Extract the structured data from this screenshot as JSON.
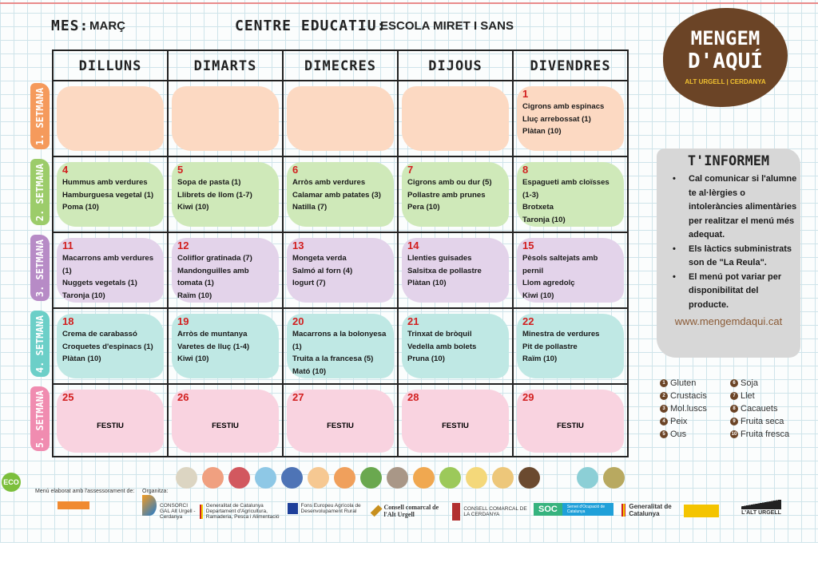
{
  "header": {
    "month_label": "MES:",
    "month": "MARÇ",
    "centre_label": "CENTRE EDUCATIU:",
    "centre": "ESCOLA MIRET I SANS"
  },
  "logo": {
    "line1": "MENGEM",
    "line2": "D'AQUÍ",
    "line3": "ALT URGELL | CERDANYA",
    "color": "#6b4426"
  },
  "days": [
    "DILLUNS",
    "DIMARTS",
    "DIMECRES",
    "DIJOUS",
    "DIVENDRES"
  ],
  "weeks": [
    {
      "label": "1. SETMANA",
      "color": "#f59a5c",
      "cell_color": "#fcd9c2",
      "cells": [
        null,
        null,
        null,
        null,
        {
          "day": "1",
          "items": [
            "Cigrons amb espinacs",
            "Lluç arrebossat (1)",
            "Plàtan (10)"
          ]
        }
      ]
    },
    {
      "label": "2. SETMANA",
      "color": "#9ccc6a",
      "cell_color": "#cfe9b9",
      "cells": [
        {
          "day": "4",
          "items": [
            "Hummus amb verdures",
            "Hamburguesa vegetal (1)",
            "Poma (10)"
          ]
        },
        {
          "day": "5",
          "items": [
            "Sopa de pasta (1)",
            "Llibrets de llom (1-7)",
            "Kiwi (10)"
          ]
        },
        {
          "day": "6",
          "items": [
            "Arròs amb verdures",
            "Calamar amb patates (3)",
            "Natilla (7)"
          ]
        },
        {
          "day": "7",
          "items": [
            "Cigrons amb ou dur (5)",
            "Pollastre amb prunes",
            "Pera (10)"
          ]
        },
        {
          "day": "8",
          "items": [
            "Espagueti amb cloïsses (1-3)",
            "Brotxeta",
            "Taronja  (10)"
          ]
        }
      ]
    },
    {
      "label": "3. SETMANA",
      "color": "#b78bc6",
      "cell_color": "#e3d3ea",
      "cells": [
        {
          "day": "11",
          "items": [
            "Macarrons amb verdures (1)",
            "Nuggets vegetals (1)",
            "Taronja (10)"
          ]
        },
        {
          "day": "12",
          "items": [
            "Coliflor gratinada (7)",
            "Mandonguilles amb",
            "tomata (1)",
            "Raïm (10)"
          ]
        },
        {
          "day": "13",
          "items": [
            "Mongeta verda",
            "Salmó al forn (4)",
            "Iogurt (7)"
          ]
        },
        {
          "day": "14",
          "items": [
            "Llenties guisades",
            "Salsitxa de pollastre",
            "Plàtan (10)"
          ]
        },
        {
          "day": "15",
          "items": [
            "Pèsols saltejats amb pernil",
            "Llom agredolç",
            "Kiwi (10)"
          ]
        }
      ]
    },
    {
      "label": "4. SETMANA",
      "color": "#6ccfc8",
      "cell_color": "#bfe8e4",
      "cells": [
        {
          "day": "18",
          "items": [
            "Crema de carabassó",
            "Croquetes d'espinacs (1)",
            "Plàtan (10)"
          ]
        },
        {
          "day": "19",
          "items": [
            "Arròs de muntanya",
            "Varetes de lluç (1-4)",
            "Kiwi (10)"
          ]
        },
        {
          "day": "20",
          "items": [
            "Macarrons a la bolonyesa (1)",
            "Truita a la francesa (5)",
            "Mató (10)"
          ]
        },
        {
          "day": "21",
          "items": [
            "Trinxat de bròquil",
            "Vedella amb bolets",
            "Pruna (10)"
          ]
        },
        {
          "day": "22",
          "items": [
            "Minestra de verdures",
            "Pit de pollastre",
            "Raïm (10)"
          ]
        }
      ]
    },
    {
      "label": "5. SETMANA",
      "color": "#f08cb0",
      "cell_color": "#f9d3e0",
      "cells": [
        {
          "day": "25",
          "festiu": "FESTIU"
        },
        {
          "day": "26",
          "festiu": "FESTIU"
        },
        {
          "day": "27",
          "festiu": "FESTIU"
        },
        {
          "day": "28",
          "festiu": "FESTIU"
        },
        {
          "day": "29",
          "festiu": "FESTIU"
        }
      ]
    }
  ],
  "info": {
    "title": "T'INFORMEM",
    "bullets": [
      "Cal comunicar si l'alumne te al·lèrgies o intoleràncies alimentàries per realitzar el menú més adequat.",
      "Els làctics subministrats son de \"La Reula\".",
      "El menú pot variar per disponibilitat del producte."
    ],
    "website": "www.mengemdaqui.cat"
  },
  "allergens": [
    "Gluten",
    "Soja",
    "Crustacis",
    "Llet",
    "Mol.luscs",
    "Cacauets",
    "Peix",
    "Fruita seca",
    "Ous",
    "Fruita fresca"
  ],
  "allergen_numbers": [
    "1",
    "6",
    "2",
    "7",
    "3",
    "8",
    "4",
    "9",
    "5",
    "10"
  ],
  "food_icons": [
    "#dcd5c2",
    "#f0a080",
    "#d2585f",
    "#8ec8e6",
    "#4e74b6",
    "#f6c892",
    "#f0a05c",
    "#6aa84f",
    "#a99787",
    "#f0a850",
    "#9cc95a",
    "#f4d87a",
    "#edc77a",
    "#6b4a2f",
    "#8ccfd6",
    "#b8a960"
  ],
  "footer": {
    "eco": "ECO",
    "advice": "Menú elaborat amb l'assessorament de:",
    "organitza": "Organitza:",
    "consorci": "CONSORCI GAL Alt Urgell - Cerdanya",
    "generalitat_dept": "Generalitat de Catalunya Departament d'Agricultura, Ramaderia, Pesca i Alimentació",
    "feader": "Fons Europeu Agrícola de Desenvolupament Rural",
    "cc_alt_urgell": "Consell comarcal de l'Alt Urgell",
    "cc_cerdanya": "CONSELL COMARCAL DE LA CERDANYA",
    "soc": "SOC",
    "soc_sub": "Servei d'Ocupació de Catalunya",
    "generalitat": "Generalitat de Catalunya",
    "alt_urgell": "L'ALT URGELL"
  }
}
